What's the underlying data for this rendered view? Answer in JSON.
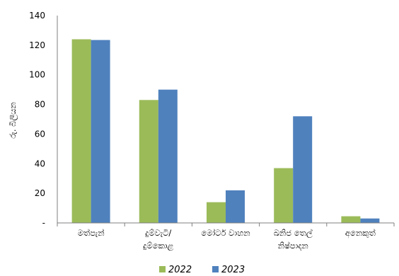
{
  "chart_data": {
    "type": "bar",
    "title": "",
    "xlabel": "",
    "ylabel": "රු. බිලියන",
    "ylim": [
      0,
      140
    ],
    "yticks": [
      140,
      120,
      100,
      80,
      60,
      40,
      20
    ],
    "zero_label": "-",
    "grid": false,
    "legend_position": "bottom",
    "categories": [
      [
        "මත්පැන්"
      ],
      [
        "දුම්වැටි/",
        "දුම්කොළ"
      ],
      [
        "මෝටර් වාහන"
      ],
      [
        "ඛනිජ තෙල්",
        "නිෂ්පාදන"
      ],
      [
        "අනෙකුත්"
      ]
    ],
    "series": [
      {
        "name": "2022",
        "color": "#9BBB59",
        "values": [
          124,
          83,
          14,
          37,
          4.5
        ]
      },
      {
        "name": "2023",
        "color": "#4F81BD",
        "values": [
          123.5,
          90,
          22,
          72,
          3
        ]
      }
    ]
  }
}
